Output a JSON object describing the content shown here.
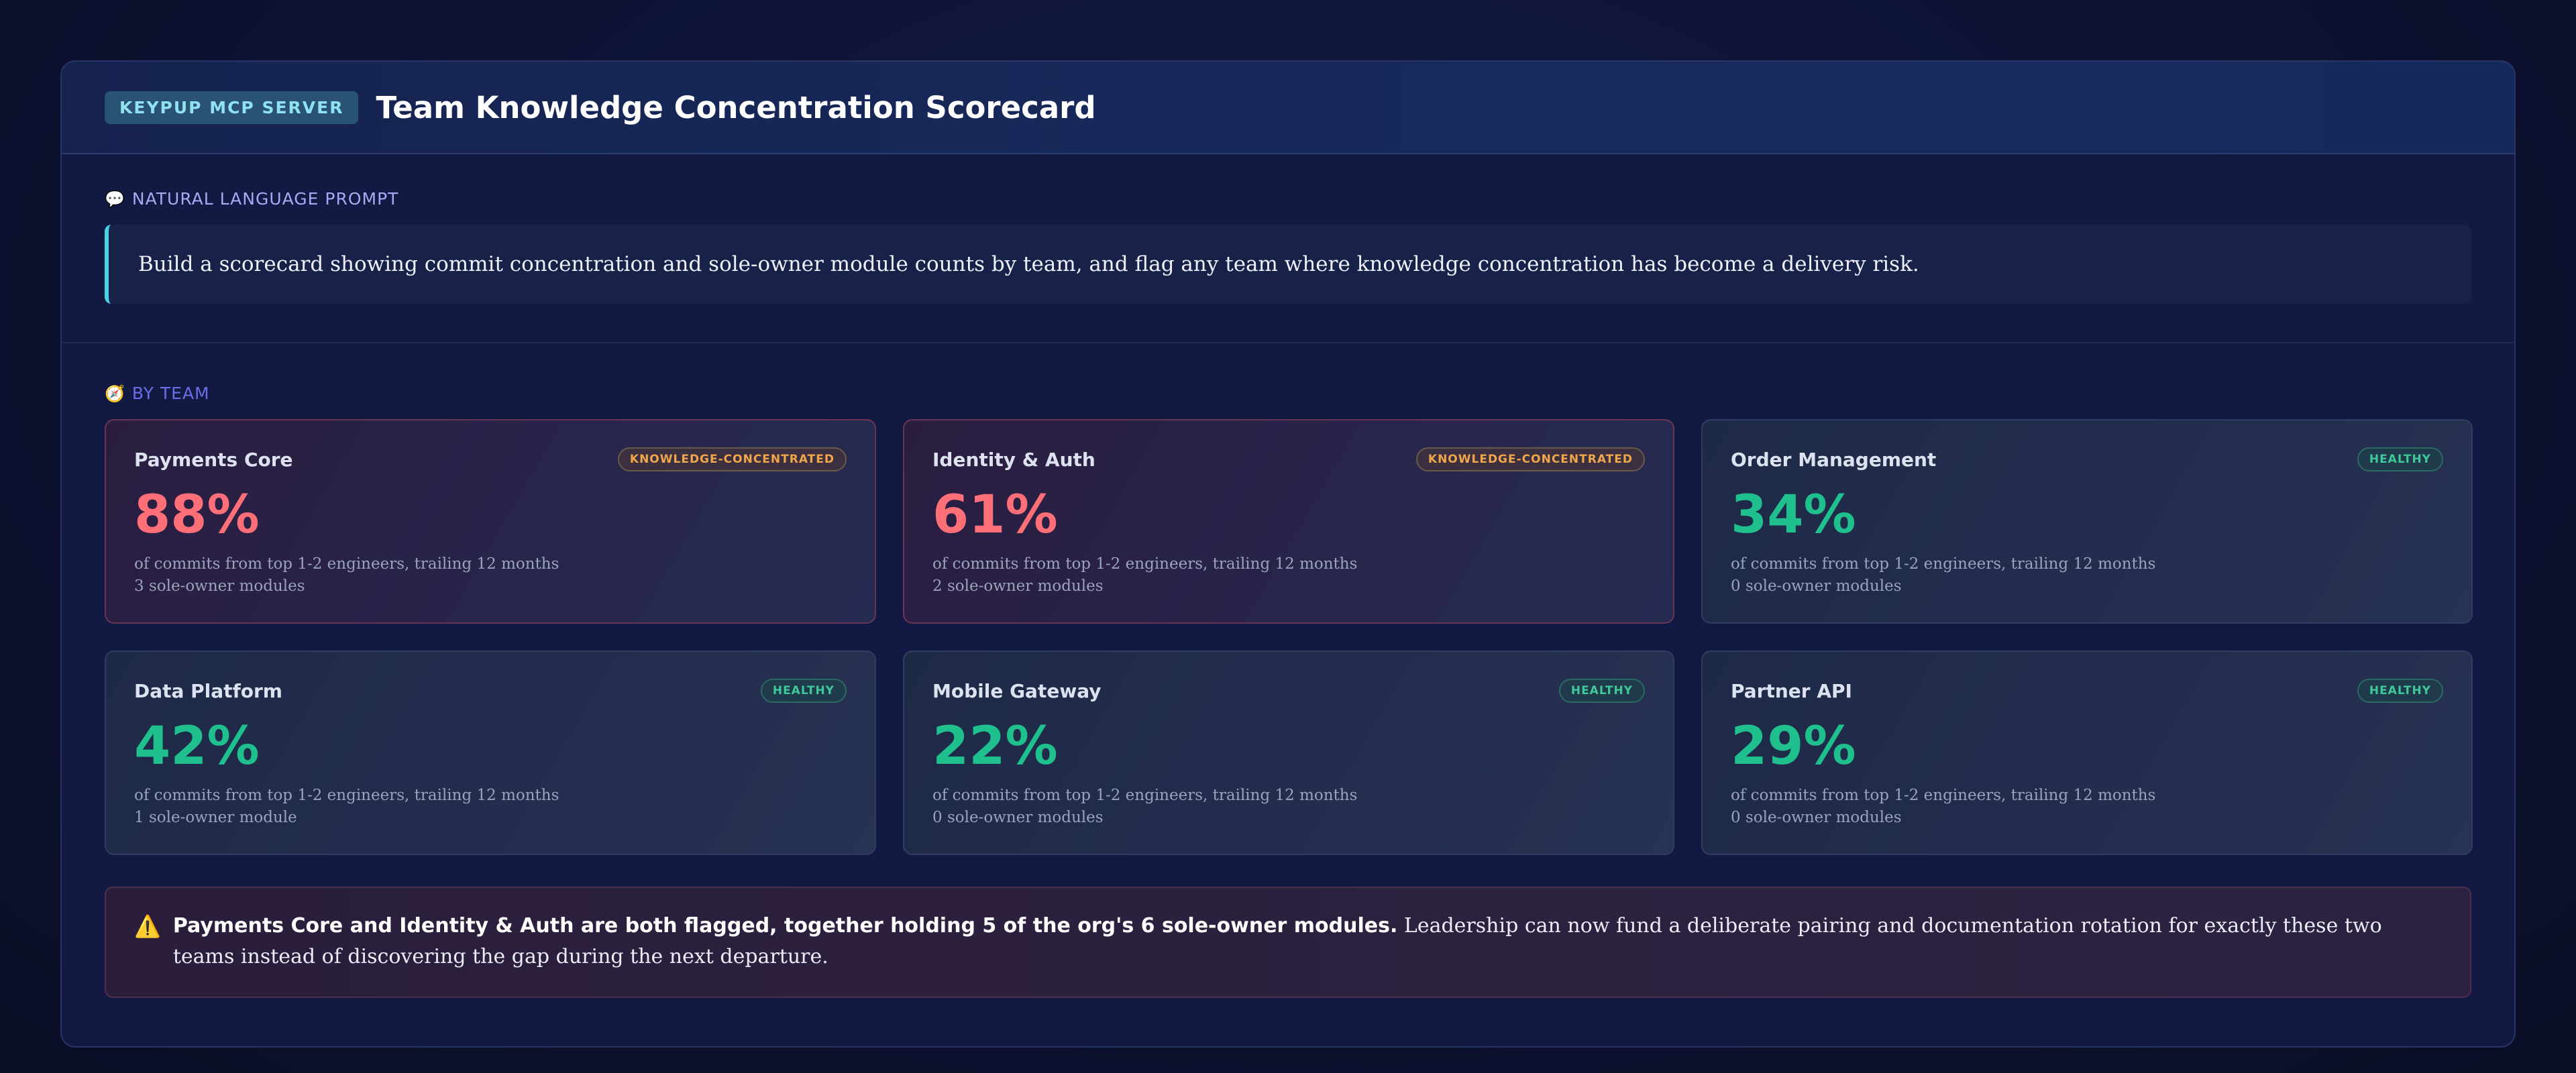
{
  "header": {
    "badge": "KEYPUP MCP SERVER",
    "title": "Team Knowledge Concentration Scorecard"
  },
  "prompt": {
    "label": "NATURAL LANGUAGE PROMPT",
    "icon": "speech-bubble-icon",
    "text": "Build a scorecard showing commit concentration and sole-owner module counts by team, and flag any team where knowledge concentration has become a delivery risk."
  },
  "by_team": {
    "label": "BY TEAM",
    "icon": "compass-icon",
    "teams": [
      {
        "name": "Payments Core",
        "status": "KNOWLEDGE-CONCENTRATED",
        "pct": "88%",
        "desc": "of commits from top 1-2 engineers, trailing 12 months",
        "modules": "3 sole-owner modules"
      },
      {
        "name": "Identity & Auth",
        "status": "KNOWLEDGE-CONCENTRATED",
        "pct": "61%",
        "desc": "of commits from top 1-2 engineers, trailing 12 months",
        "modules": "2 sole-owner modules"
      },
      {
        "name": "Order Management",
        "status": "HEALTHY",
        "pct": "34%",
        "desc": "of commits from top 1-2 engineers, trailing 12 months",
        "modules": "0 sole-owner modules"
      },
      {
        "name": "Data Platform",
        "status": "HEALTHY",
        "pct": "42%",
        "desc": "of commits from top 1-2 engineers, trailing 12 months",
        "modules": "1 sole-owner module"
      },
      {
        "name": "Mobile Gateway",
        "status": "HEALTHY",
        "pct": "22%",
        "desc": "of commits from top 1-2 engineers, trailing 12 months",
        "modules": "0 sole-owner modules"
      },
      {
        "name": "Partner API",
        "status": "HEALTHY",
        "pct": "29%",
        "desc": "of commits from top 1-2 engineers, trailing 12 months",
        "modules": "0 sole-owner modules"
      }
    ]
  },
  "alert": {
    "icon": "warning-icon",
    "bold": "Payments Core and Identity & Auth are both flagged, together holding 5 of the org's 6 sole-owner modules.",
    "rest": " Leadership can now fund a deliberate pairing and documentation rotation for exactly these two teams instead of discovering the gap during the next departure."
  },
  "colors": {
    "risk": "#ff6f78",
    "healthy": "#1fbf8e",
    "accent": "#49d3e6"
  }
}
